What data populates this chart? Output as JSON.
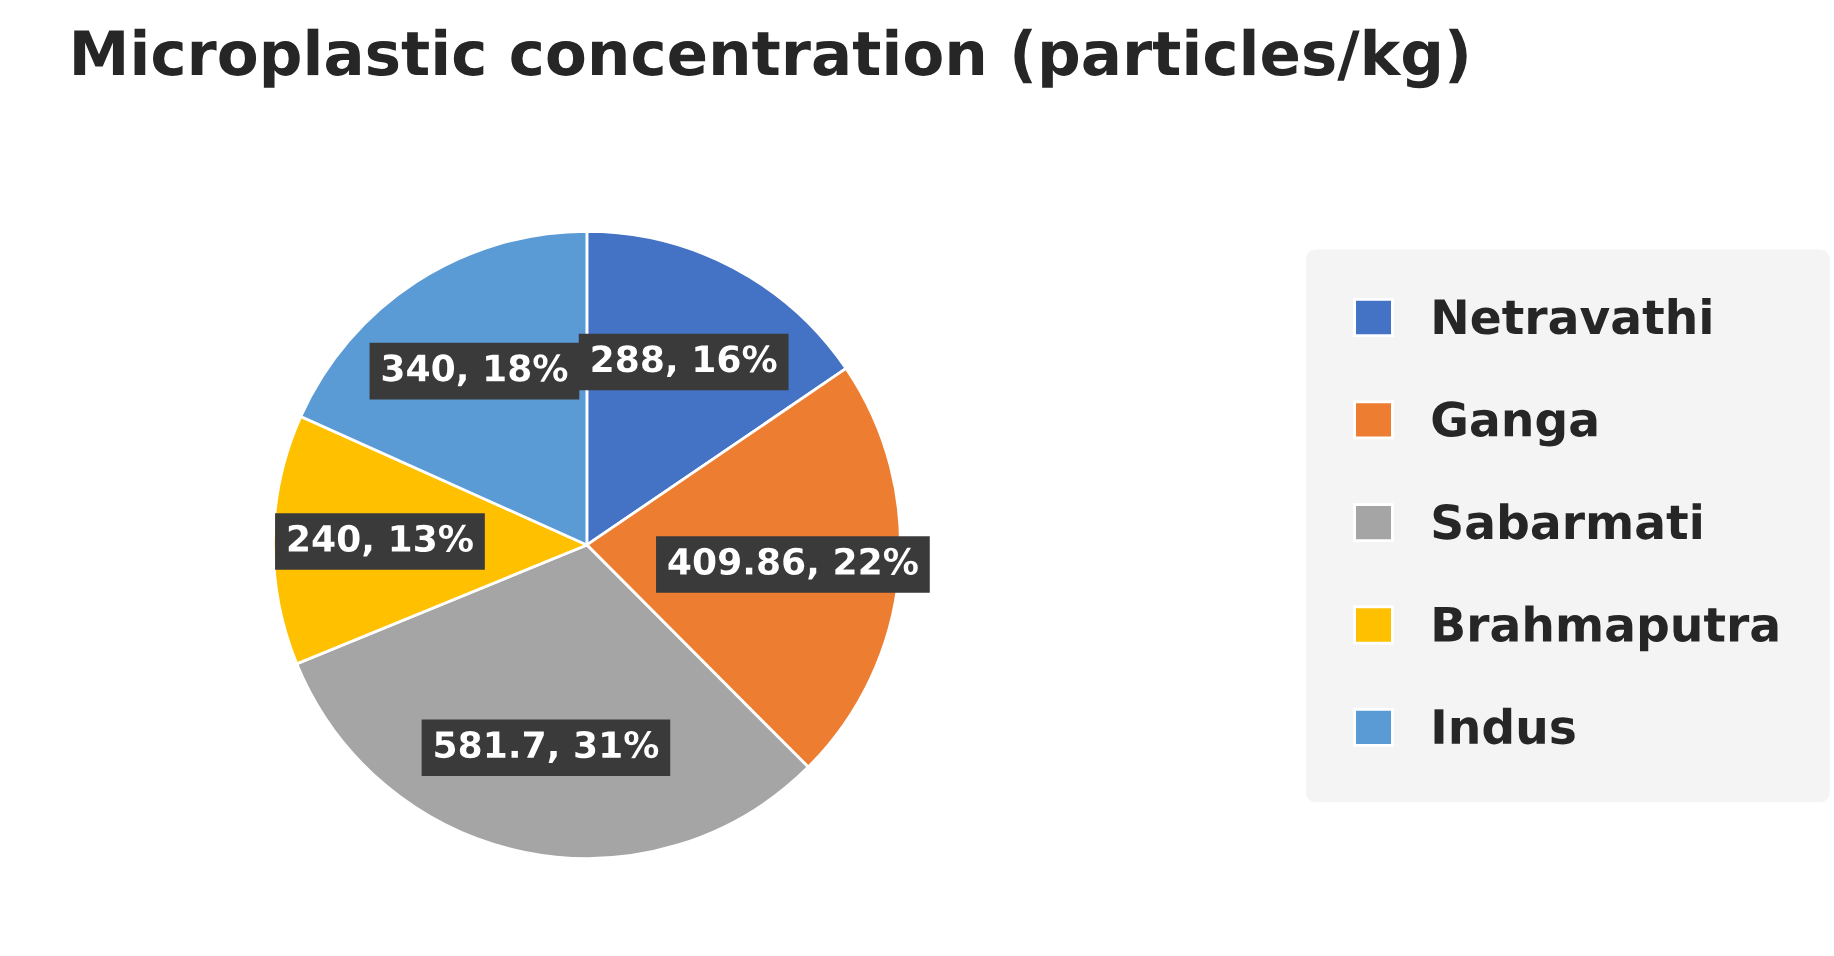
{
  "chart_data": {
    "type": "pie",
    "title": "Microplastic concentration (particles/kg)",
    "categories": [
      "Netravathi",
      "Ganga",
      "Sabarmati",
      "Brahmaputra",
      "Indus"
    ],
    "values": [
      288,
      409.86,
      581.7,
      240,
      340
    ],
    "colors": [
      "#4472c4",
      "#ed7d31",
      "#a5a5a5",
      "#ffc000",
      "#5b9bd5"
    ],
    "value_labels": [
      "288, 16%",
      "409.86, 22%",
      "581.7, 31%",
      "240, 13%",
      "340, 18%"
    ],
    "legend": "right"
  }
}
